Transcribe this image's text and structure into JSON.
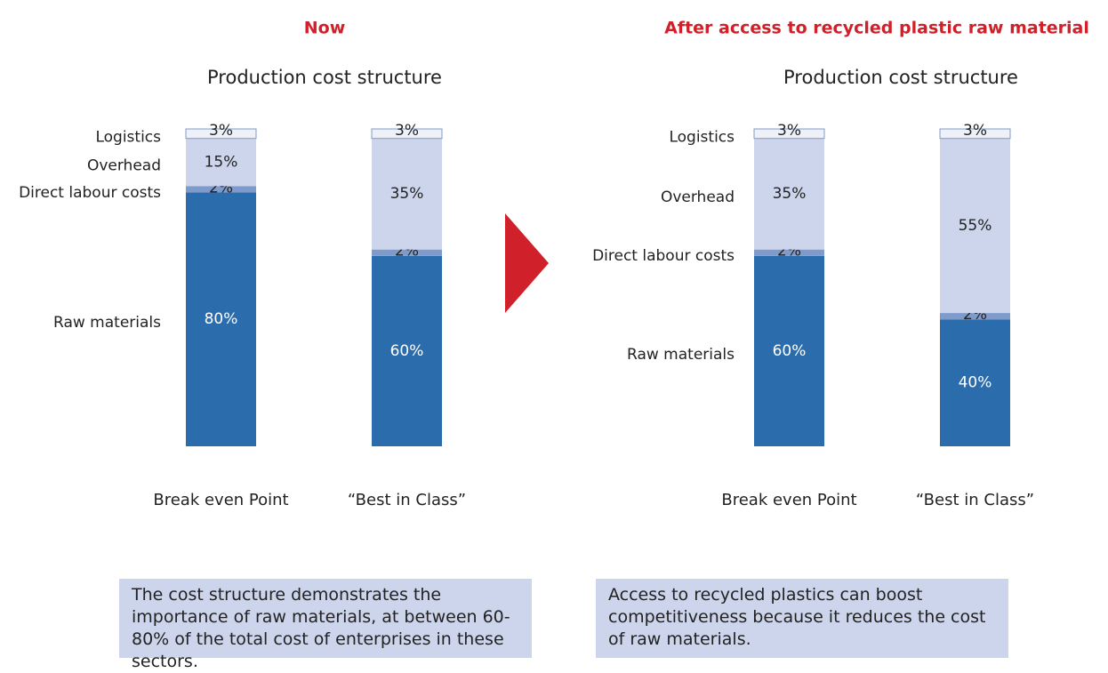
{
  "chart_data": [
    {
      "type": "stacked_bar",
      "heading": "Now",
      "title": "Production cost structure",
      "categories": [
        "Break even Point",
        "“Best in Class”"
      ],
      "ylim": [
        0,
        100
      ],
      "series": [
        {
          "name": "Raw materials",
          "color": "#2b6cad",
          "values": [
            80,
            60
          ],
          "value_labels": [
            "80%",
            "60%"
          ]
        },
        {
          "name": "Direct labour costs",
          "color": "#7f9bcc",
          "values": [
            2,
            2
          ],
          "value_labels": [
            "2%",
            "2%"
          ]
        },
        {
          "name": "Overhead",
          "color": "#ccd5eb",
          "values": [
            15,
            35
          ],
          "value_labels": [
            "15%",
            "35%"
          ]
        },
        {
          "name": "Logistics",
          "color": "#eef1f8",
          "values": [
            3,
            3
          ],
          "value_labels": [
            "3%",
            "3%"
          ]
        }
      ],
      "note": "The cost structure demonstrates the importance of raw materials, at between 60-80% of the total cost of enterprises in these sectors."
    },
    {
      "type": "stacked_bar",
      "heading": "After access to recycled plastic raw material",
      "title": "Production cost structure",
      "categories": [
        "Break even Point",
        "“Best in Class”"
      ],
      "ylim": [
        0,
        100
      ],
      "series": [
        {
          "name": "Raw materials",
          "color": "#2b6cad",
          "values": [
            60,
            40
          ],
          "value_labels": [
            "60%",
            "40%"
          ]
        },
        {
          "name": "Direct labour costs",
          "color": "#7f9bcc",
          "values": [
            2,
            2
          ],
          "value_labels": [
            "2%",
            "2%"
          ]
        },
        {
          "name": "Overhead",
          "color": "#ccd5eb",
          "values": [
            35,
            55
          ],
          "value_labels": [
            "35%",
            "55%"
          ]
        },
        {
          "name": "Logistics",
          "color": "#eef1f8",
          "values": [
            3,
            3
          ],
          "value_labels": [
            "3%",
            "3%"
          ]
        }
      ],
      "note": "Access to recycled plastics can boost competitiveness because it reduces the cost of raw materials."
    }
  ]
}
